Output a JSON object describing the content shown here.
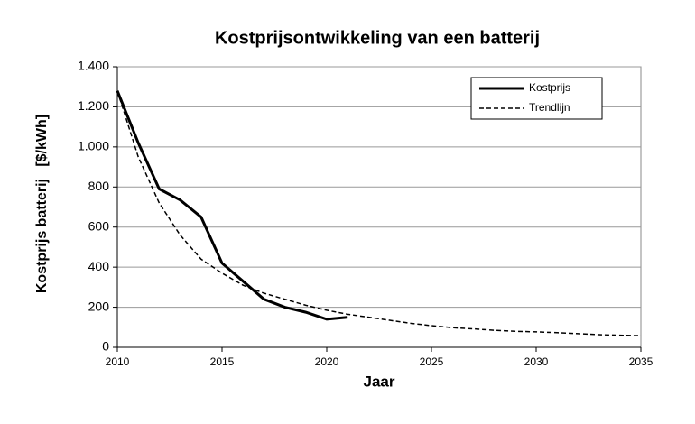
{
  "chart_data": {
    "type": "line",
    "title": "Kostprijsontwikkeling van een batterij",
    "xlabel": "Jaar",
    "ylabel": "Kostprijs batterij   [$/kWh]",
    "xlim": [
      2010,
      2035
    ],
    "xticks": [
      2010,
      2015,
      2020,
      2025,
      2030,
      2035
    ],
    "ylim": [
      0,
      1400
    ],
    "yticks": [
      0,
      200,
      400,
      600,
      800,
      {
        "value": 1000,
        "label": "1.000"
      },
      {
        "value": 1200,
        "label": "1.200"
      },
      {
        "value": 1400,
        "label": "1.400"
      }
    ],
    "grid": true,
    "legend": "upper right",
    "series": [
      {
        "name": "Kostprijs",
        "color": "#000000",
        "dash": "solid",
        "x": [
          2010,
          2011,
          2012,
          2013,
          2014,
          2015,
          2016,
          2017,
          2018,
          2019,
          2020,
          2021
        ],
        "values": [
          1280,
          1020,
          790,
          735,
          650,
          420,
          330,
          240,
          200,
          175,
          140,
          150
        ]
      },
      {
        "name": "Trendlijn",
        "color": "#000000",
        "dash": "dashed",
        "x": [
          2010,
          2011,
          2012,
          2013,
          2014,
          2015,
          2016,
          2017,
          2018,
          2019,
          2020,
          2021,
          2022,
          2023,
          2024,
          2025,
          2026,
          2027,
          2028,
          2029,
          2030,
          2031,
          2032,
          2033,
          2034,
          2035
        ],
        "values": [
          1280,
          950,
          720,
          560,
          440,
          370,
          310,
          270,
          240,
          210,
          185,
          165,
          150,
          135,
          120,
          108,
          98,
          92,
          85,
          80,
          77,
          73,
          68,
          63,
          60,
          58
        ]
      }
    ]
  }
}
